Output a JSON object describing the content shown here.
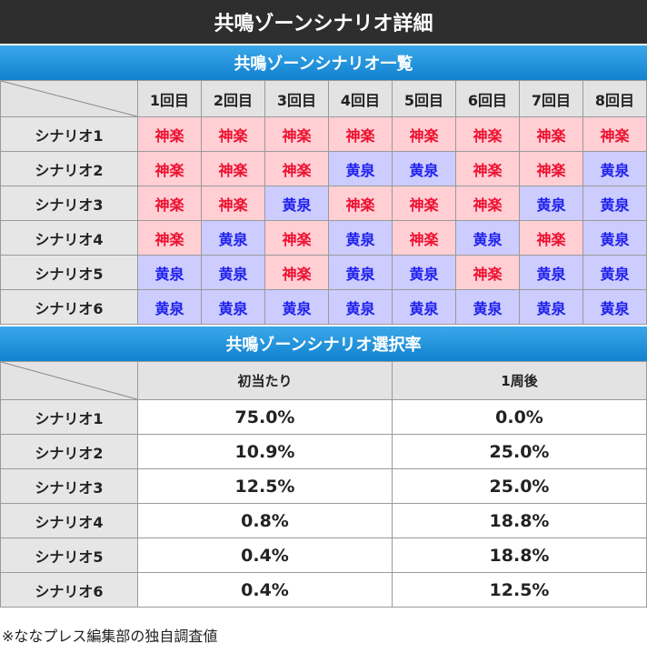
{
  "title": "共鳴ゾーンシナリオ詳細",
  "table1": {
    "title": "共鳴ゾーンシナリオ一覧",
    "columns": [
      "1回目",
      "2回目",
      "3回目",
      "4回目",
      "5回目",
      "6回目",
      "7回目",
      "8回目"
    ],
    "rows": [
      {
        "label": "シナリオ1",
        "cells": [
          "神楽",
          "神楽",
          "神楽",
          "神楽",
          "神楽",
          "神楽",
          "神楽",
          "神楽"
        ]
      },
      {
        "label": "シナリオ2",
        "cells": [
          "神楽",
          "神楽",
          "神楽",
          "黄泉",
          "黄泉",
          "神楽",
          "神楽",
          "黄泉"
        ]
      },
      {
        "label": "シナリオ3",
        "cells": [
          "神楽",
          "神楽",
          "黄泉",
          "神楽",
          "神楽",
          "神楽",
          "黄泉",
          "黄泉"
        ]
      },
      {
        "label": "シナリオ4",
        "cells": [
          "神楽",
          "黄泉",
          "神楽",
          "黄泉",
          "神楽",
          "黄泉",
          "神楽",
          "黄泉"
        ]
      },
      {
        "label": "シナリオ5",
        "cells": [
          "黄泉",
          "黄泉",
          "神楽",
          "黄泉",
          "黄泉",
          "神楽",
          "黄泉",
          "黄泉"
        ]
      },
      {
        "label": "シナリオ6",
        "cells": [
          "黄泉",
          "黄泉",
          "黄泉",
          "黄泉",
          "黄泉",
          "黄泉",
          "黄泉",
          "黄泉"
        ]
      }
    ]
  },
  "table2": {
    "title": "共鳴ゾーンシナリオ選択率",
    "columns": [
      "初当たり",
      "1周後"
    ],
    "rows": [
      {
        "label": "シナリオ1",
        "values": [
          "75.0%",
          "0.0%"
        ]
      },
      {
        "label": "シナリオ2",
        "values": [
          "10.9%",
          "25.0%"
        ]
      },
      {
        "label": "シナリオ3",
        "values": [
          "12.5%",
          "25.0%"
        ]
      },
      {
        "label": "シナリオ4",
        "values": [
          "0.8%",
          "18.8%"
        ]
      },
      {
        "label": "シナリオ5",
        "values": [
          "0.4%",
          "18.8%"
        ]
      },
      {
        "label": "シナリオ6",
        "values": [
          "0.4%",
          "12.5%"
        ]
      }
    ]
  },
  "footnote": "※ななプレス編集部の独自調査値"
}
